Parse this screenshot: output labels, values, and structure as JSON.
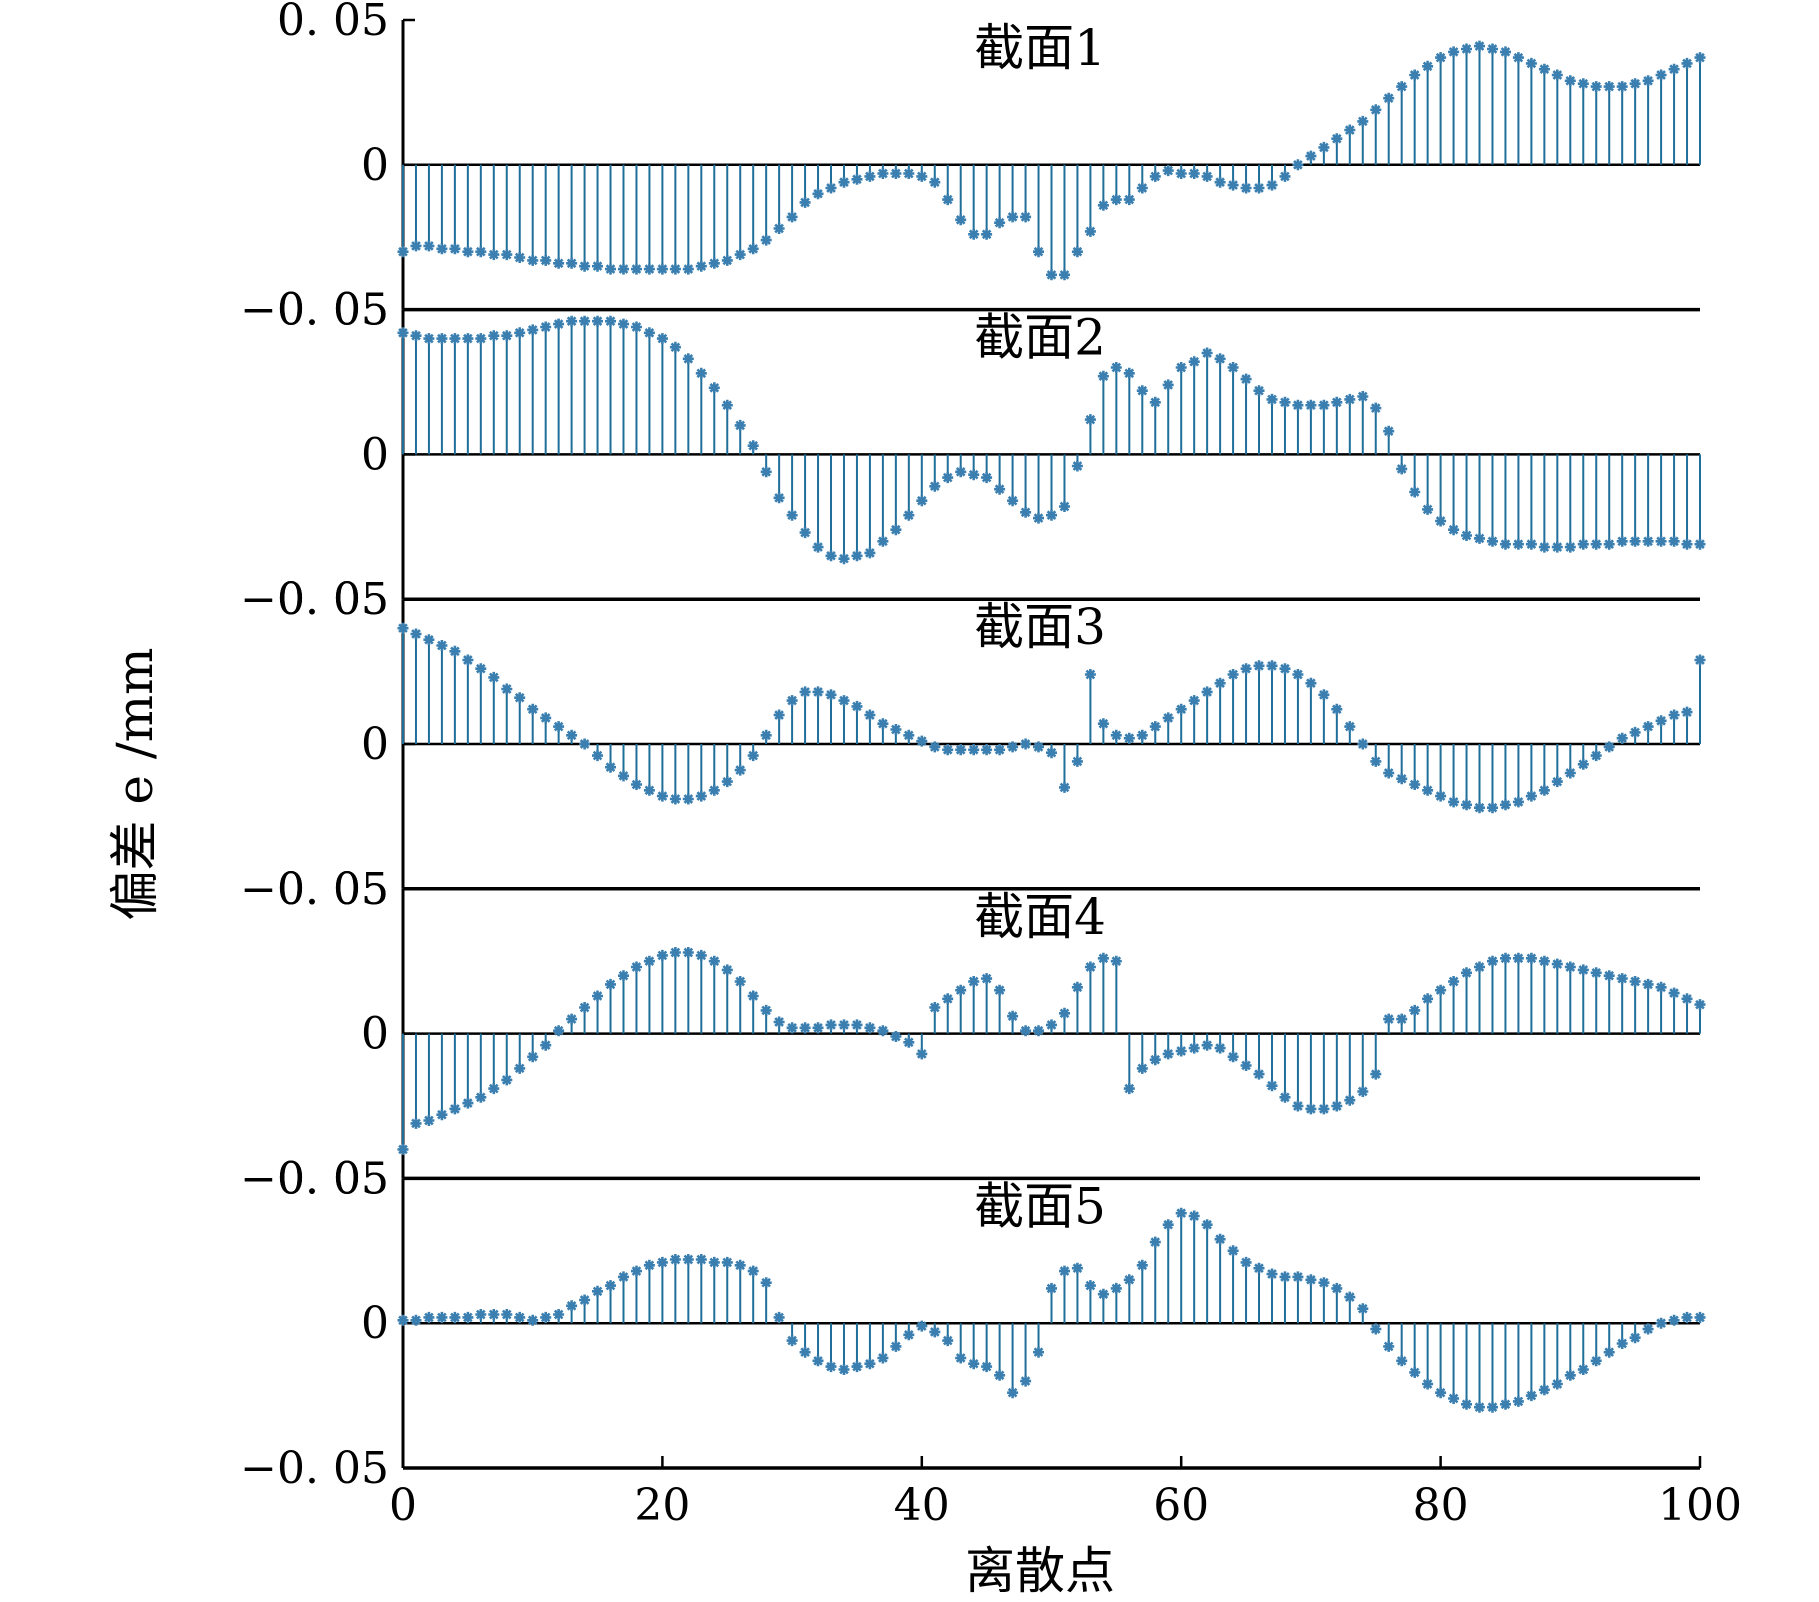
{
  "figure": {
    "ylabel": "偏差 e /mm",
    "xlabel": "离散点",
    "x_ticks": [
      0,
      20,
      40,
      60,
      80,
      100
    ],
    "y_ticks": [
      0.05,
      0,
      -0.05
    ],
    "y_tick_labels": [
      "0. 05",
      "0",
      "−0. 05"
    ],
    "stem_color": "#1f6f9a",
    "marker_color": "#3a7fb0"
  },
  "chart_data": [
    {
      "type": "stem",
      "title": "截面1",
      "xlim": [
        0,
        100
      ],
      "ylim": [
        -0.05,
        0.05
      ],
      "x_start": 0,
      "x_step": 1,
      "values": [
        -0.03,
        -0.028,
        -0.028,
        -0.029,
        -0.029,
        -0.03,
        -0.03,
        -0.031,
        -0.031,
        -0.032,
        -0.033,
        -0.033,
        -0.034,
        -0.034,
        -0.035,
        -0.035,
        -0.036,
        -0.036,
        -0.036,
        -0.036,
        -0.036,
        -0.036,
        -0.036,
        -0.035,
        -0.034,
        -0.033,
        -0.031,
        -0.029,
        -0.026,
        -0.022,
        -0.018,
        -0.013,
        -0.01,
        -0.008,
        -0.006,
        -0.005,
        -0.004,
        -0.003,
        -0.003,
        -0.003,
        -0.004,
        -0.006,
        -0.012,
        -0.019,
        -0.024,
        -0.024,
        -0.02,
        -0.018,
        -0.018,
        -0.03,
        -0.038,
        -0.038,
        -0.03,
        -0.023,
        -0.014,
        -0.012,
        -0.012,
        -0.008,
        -0.004,
        -0.002,
        -0.003,
        -0.003,
        -0.004,
        -0.006,
        -0.007,
        -0.008,
        -0.008,
        -0.007,
        -0.004,
        0.0,
        0.003,
        0.006,
        0.009,
        0.012,
        0.015,
        0.019,
        0.023,
        0.027,
        0.031,
        0.034,
        0.037,
        0.039,
        0.04,
        0.041,
        0.04,
        0.039,
        0.037,
        0.035,
        0.033,
        0.031,
        0.029,
        0.028,
        0.027,
        0.027,
        0.027,
        0.028,
        0.029,
        0.031,
        0.033,
        0.035,
        0.037
      ]
    },
    {
      "type": "stem",
      "title": "截面2",
      "xlim": [
        0,
        100
      ],
      "ylim": [
        -0.05,
        0.05
      ],
      "x_start": 0,
      "x_step": 1,
      "values": [
        0.042,
        0.041,
        0.04,
        0.04,
        0.04,
        0.04,
        0.04,
        0.041,
        0.041,
        0.042,
        0.043,
        0.044,
        0.045,
        0.046,
        0.046,
        0.046,
        0.046,
        0.045,
        0.044,
        0.042,
        0.04,
        0.037,
        0.033,
        0.028,
        0.023,
        0.017,
        0.01,
        0.003,
        -0.006,
        -0.015,
        -0.021,
        -0.027,
        -0.032,
        -0.035,
        -0.036,
        -0.035,
        -0.034,
        -0.03,
        -0.026,
        -0.021,
        -0.016,
        -0.011,
        -0.008,
        -0.006,
        -0.007,
        -0.008,
        -0.012,
        -0.016,
        -0.02,
        -0.022,
        -0.021,
        -0.018,
        -0.004,
        0.012,
        0.027,
        0.03,
        0.028,
        0.022,
        0.018,
        0.024,
        0.03,
        0.032,
        0.035,
        0.033,
        0.03,
        0.026,
        0.022,
        0.019,
        0.018,
        0.017,
        0.017,
        0.017,
        0.018,
        0.019,
        0.02,
        0.016,
        0.008,
        -0.005,
        -0.013,
        -0.019,
        -0.023,
        -0.026,
        -0.028,
        -0.029,
        -0.03,
        -0.031,
        -0.031,
        -0.031,
        -0.032,
        -0.032,
        -0.032,
        -0.031,
        -0.031,
        -0.031,
        -0.03,
        -0.03,
        -0.03,
        -0.03,
        -0.03,
        -0.031,
        -0.031
      ]
    },
    {
      "type": "stem",
      "title": "截面3",
      "xlim": [
        0,
        100
      ],
      "ylim": [
        -0.05,
        0.05
      ],
      "x_start": 0,
      "x_step": 1,
      "values": [
        0.04,
        0.038,
        0.036,
        0.034,
        0.032,
        0.029,
        0.026,
        0.023,
        0.019,
        0.016,
        0.012,
        0.009,
        0.006,
        0.003,
        0.0,
        -0.004,
        -0.008,
        -0.011,
        -0.014,
        -0.016,
        -0.018,
        -0.019,
        -0.019,
        -0.018,
        -0.016,
        -0.013,
        -0.009,
        -0.004,
        0.003,
        0.01,
        0.015,
        0.018,
        0.018,
        0.017,
        0.015,
        0.013,
        0.01,
        0.007,
        0.005,
        0.003,
        0.001,
        -0.001,
        -0.002,
        -0.002,
        -0.002,
        -0.002,
        -0.002,
        -0.001,
        0.0,
        -0.001,
        -0.003,
        -0.015,
        -0.006,
        0.024,
        0.007,
        0.003,
        0.002,
        0.003,
        0.006,
        0.009,
        0.012,
        0.015,
        0.018,
        0.021,
        0.024,
        0.026,
        0.027,
        0.027,
        0.026,
        0.024,
        0.021,
        0.017,
        0.012,
        0.006,
        0.0,
        -0.006,
        -0.01,
        -0.012,
        -0.014,
        -0.016,
        -0.018,
        -0.02,
        -0.021,
        -0.022,
        -0.022,
        -0.021,
        -0.02,
        -0.018,
        -0.016,
        -0.013,
        -0.01,
        -0.007,
        -0.004,
        -0.001,
        0.002,
        0.004,
        0.006,
        0.008,
        0.01,
        0.011,
        0.029
      ]
    },
    {
      "type": "stem",
      "title": "截面4",
      "xlim": [
        0,
        100
      ],
      "ylim": [
        -0.05,
        0.05
      ],
      "x_start": 0,
      "x_step": 1,
      "values": [
        -0.04,
        -0.031,
        -0.03,
        -0.028,
        -0.026,
        -0.024,
        -0.022,
        -0.019,
        -0.016,
        -0.012,
        -0.008,
        -0.004,
        0.001,
        0.005,
        0.009,
        0.013,
        0.017,
        0.02,
        0.023,
        0.025,
        0.027,
        0.028,
        0.028,
        0.027,
        0.025,
        0.022,
        0.018,
        0.013,
        0.008,
        0.004,
        0.002,
        0.002,
        0.002,
        0.003,
        0.003,
        0.003,
        0.002,
        0.001,
        -0.001,
        -0.003,
        -0.007,
        0.009,
        0.012,
        0.015,
        0.018,
        0.019,
        0.015,
        0.006,
        0.001,
        0.001,
        0.003,
        0.007,
        0.016,
        0.023,
        0.026,
        0.025,
        -0.019,
        -0.012,
        -0.009,
        -0.007,
        -0.006,
        -0.005,
        -0.004,
        -0.005,
        -0.008,
        -0.011,
        -0.014,
        -0.018,
        -0.022,
        -0.025,
        -0.026,
        -0.026,
        -0.025,
        -0.023,
        -0.02,
        -0.014,
        0.005,
        0.005,
        0.008,
        0.012,
        0.015,
        0.018,
        0.021,
        0.023,
        0.025,
        0.026,
        0.026,
        0.026,
        0.025,
        0.024,
        0.023,
        0.022,
        0.021,
        0.02,
        0.019,
        0.018,
        0.017,
        0.016,
        0.014,
        0.012,
        0.01
      ]
    },
    {
      "type": "stem",
      "title": "截面5",
      "xlim": [
        0,
        100
      ],
      "ylim": [
        -0.05,
        0.05
      ],
      "x_start": 0,
      "x_step": 1,
      "values": [
        0.001,
        0.001,
        0.002,
        0.002,
        0.002,
        0.002,
        0.003,
        0.003,
        0.003,
        0.002,
        0.001,
        0.002,
        0.003,
        0.006,
        0.008,
        0.011,
        0.013,
        0.016,
        0.018,
        0.02,
        0.021,
        0.022,
        0.022,
        0.022,
        0.021,
        0.021,
        0.02,
        0.018,
        0.014,
        0.002,
        -0.006,
        -0.01,
        -0.013,
        -0.015,
        -0.016,
        -0.015,
        -0.014,
        -0.012,
        -0.008,
        -0.004,
        -0.001,
        -0.003,
        -0.006,
        -0.012,
        -0.014,
        -0.015,
        -0.018,
        -0.024,
        -0.02,
        -0.01,
        0.012,
        0.018,
        0.019,
        0.013,
        0.01,
        0.012,
        0.015,
        0.02,
        0.028,
        0.034,
        0.038,
        0.037,
        0.034,
        0.029,
        0.025,
        0.021,
        0.019,
        0.017,
        0.016,
        0.016,
        0.015,
        0.014,
        0.012,
        0.009,
        0.005,
        -0.002,
        -0.008,
        -0.013,
        -0.017,
        -0.021,
        -0.024,
        -0.026,
        -0.028,
        -0.029,
        -0.029,
        -0.028,
        -0.027,
        -0.025,
        -0.023,
        -0.021,
        -0.018,
        -0.016,
        -0.013,
        -0.01,
        -0.007,
        -0.005,
        -0.002,
        0.0,
        0.001,
        0.002,
        0.002
      ]
    }
  ]
}
